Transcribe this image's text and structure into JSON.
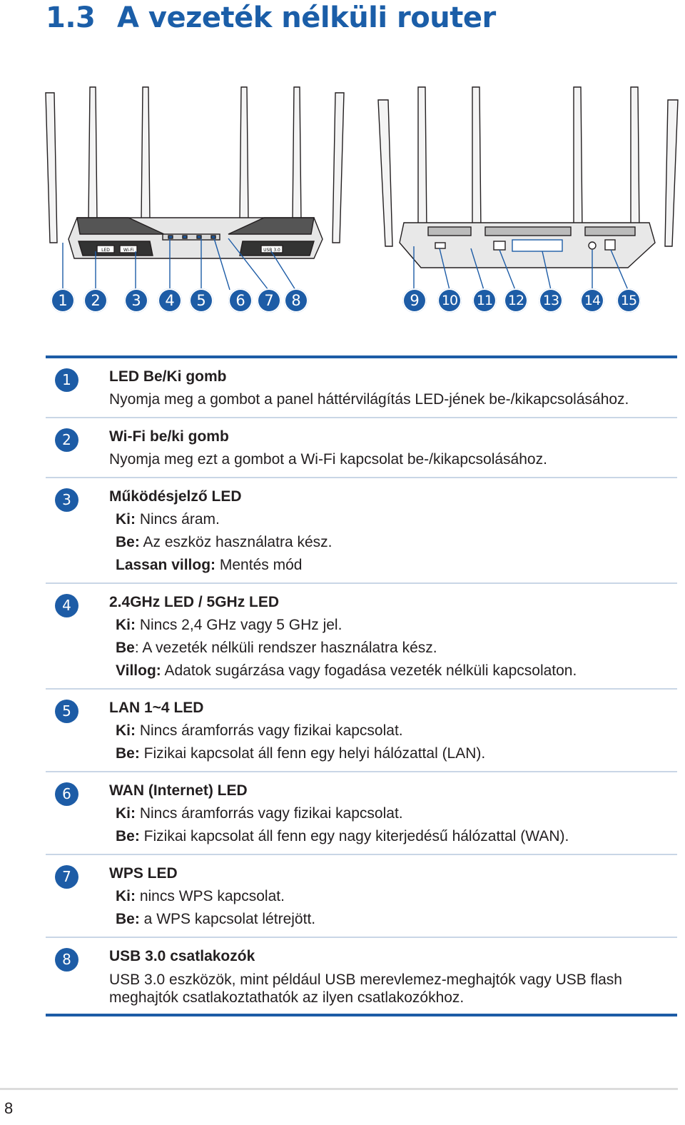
{
  "header": {
    "section": "1.3",
    "title": "A vezeték nélküli router"
  },
  "router_labels": {
    "led": "LED",
    "wifi": "Wi-Fi",
    "usb": "USB 3.0"
  },
  "callouts": [
    "1",
    "2",
    "3",
    "4",
    "5",
    "6",
    "7",
    "8",
    "9",
    "10",
    "11",
    "12",
    "13",
    "14",
    "15"
  ],
  "items": [
    {
      "num": "1",
      "title": "LED Be/Ki gomb",
      "desc": "Nyomja meg a gombot a panel háttérvilágítás LED-jének be-/kikapcsolásához.",
      "lines": []
    },
    {
      "num": "2",
      "title": "Wi-Fi be/ki gomb",
      "desc": "Nyomja meg ezt a gombot a Wi-Fi kapcsolat be-/kikapcsolásához.",
      "lines": []
    },
    {
      "num": "3",
      "title": "Működésjelző LED",
      "desc": "",
      "lines": [
        {
          "label": "Ki:",
          "text": " Nincs áram."
        },
        {
          "label": "Be:",
          "text": " Az eszköz használatra kész."
        },
        {
          "label": "Lassan villog:",
          "text": " Mentés mód"
        }
      ]
    },
    {
      "num": "4",
      "title": "2.4GHz LED / 5GHz LED",
      "desc": "",
      "lines": [
        {
          "label": "Ki:",
          "text": " Nincs 2,4 GHz vagy 5 GHz jel."
        },
        {
          "label": "Be",
          "text": ": A vezeték nélküli rendszer használatra kész."
        },
        {
          "label": "Villog:",
          "text": " Adatok sugárzása vagy fogadása vezeték nélküli kapcsolaton."
        }
      ]
    },
    {
      "num": "5",
      "title": "LAN 1~4 LED",
      "desc": "",
      "lines": [
        {
          "label": "Ki:",
          "text": " Nincs áramforrás vagy fizikai kapcsolat."
        },
        {
          "label": "Be:",
          "text": " Fizikai kapcsolat áll fenn egy helyi hálózattal (LAN)."
        }
      ]
    },
    {
      "num": "6",
      "title": "WAN (Internet) LED",
      "desc": "",
      "lines": [
        {
          "label": "Ki:",
          "text": " Nincs áramforrás vagy fizikai kapcsolat."
        },
        {
          "label": "Be:",
          "text": " Fizikai kapcsolat áll fenn egy nagy kiterjedésű hálózattal (WAN)."
        }
      ]
    },
    {
      "num": "7",
      "title": "WPS LED",
      "desc": "",
      "lines": [
        {
          "label": "Ki:",
          "text": " nincs WPS kapcsolat."
        },
        {
          "label": "Be:",
          "text": " a WPS kapcsolat létrejött."
        }
      ]
    },
    {
      "num": "8",
      "title": "USB 3.0 csatlakozók",
      "desc": "USB 3.0 eszközök, mint például USB merevlemez-meghajtók vagy USB flash meghajtók csatlakoztathatók az ilyen csatlakozókhoz.",
      "lines": []
    }
  ],
  "page_number": "8"
}
